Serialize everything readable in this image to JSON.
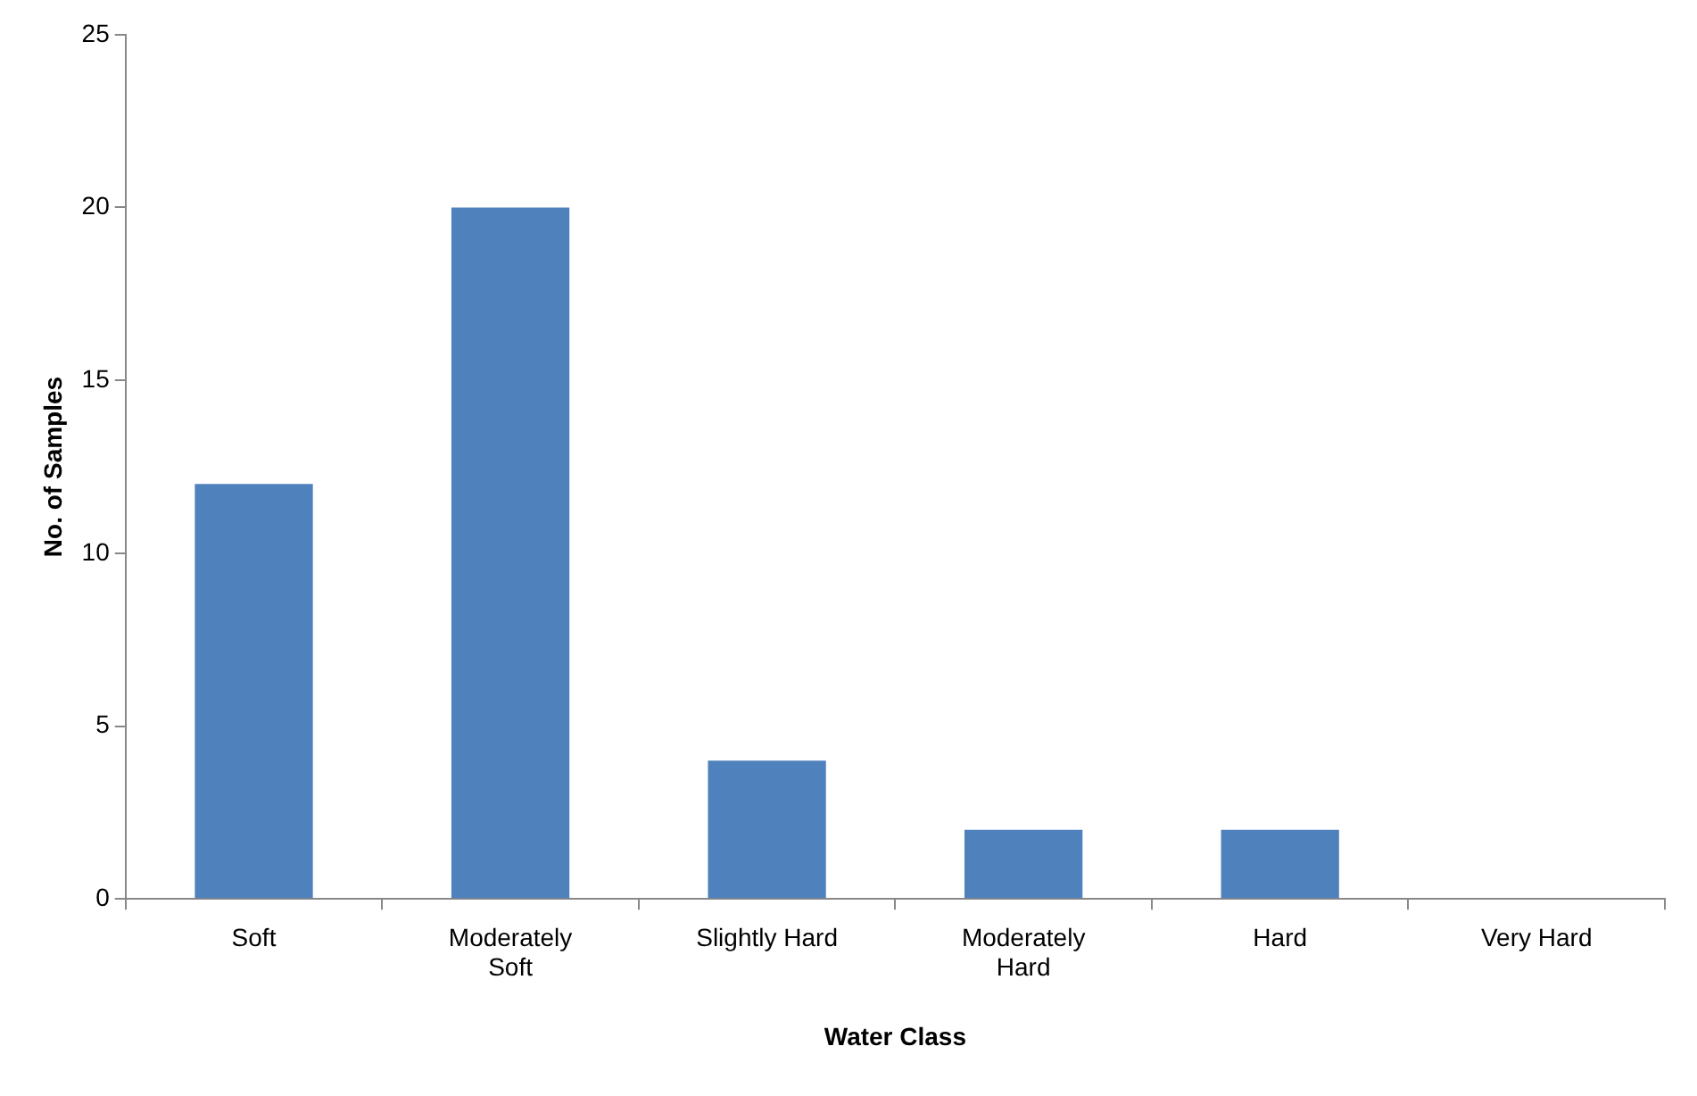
{
  "chart_data": {
    "type": "bar",
    "xlabel": "Water Class",
    "ylabel": "No. of Samples",
    "categories": [
      "Soft",
      "Moderately Soft",
      "Slightly Hard",
      "Moderately Hard",
      "Hard",
      "Very Hard"
    ],
    "values": [
      12,
      20,
      4,
      2,
      2,
      0
    ],
    "color": "#4f81bd",
    "ylim": [
      0,
      25
    ],
    "yticks": [
      0,
      5,
      10,
      15,
      20,
      25
    ],
    "grid": false,
    "legend": false
  }
}
